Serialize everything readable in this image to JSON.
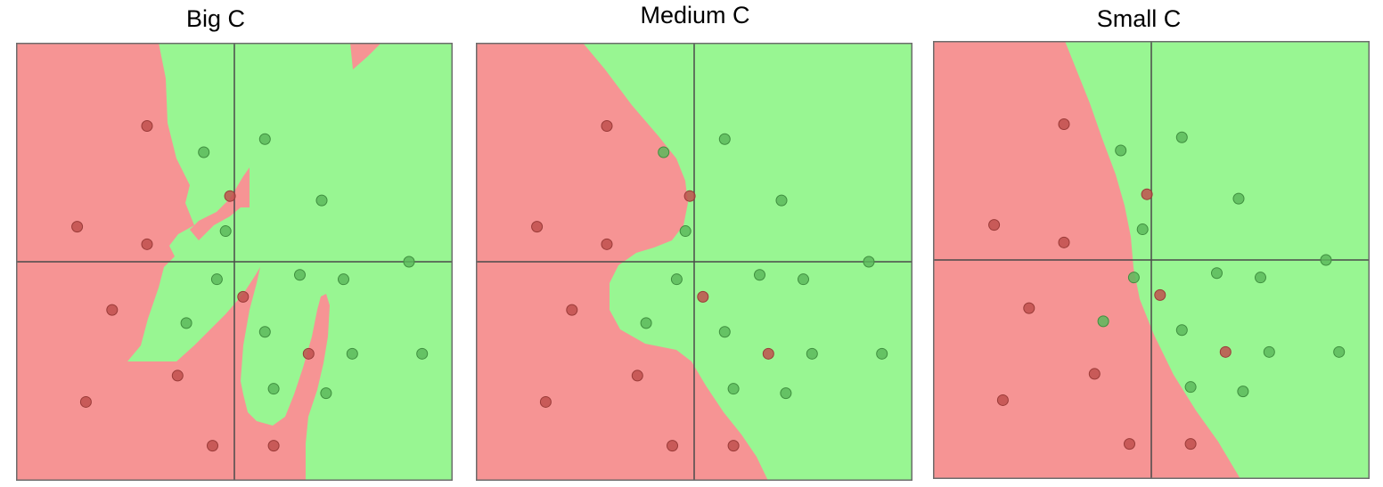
{
  "colors": {
    "red_region": "#f69494",
    "green_region": "#98f692",
    "red_point": "#c0504d",
    "green_point": "#5cb85c",
    "axis": "#4a4a4a"
  },
  "chart_data": [
    {
      "type": "scatter",
      "title": "Big C",
      "xlim": [
        -5,
        5
      ],
      "ylim": [
        -5,
        5
      ],
      "legend": "none",
      "points": [
        {
          "x": -2.0,
          "y": 3.1,
          "class": "red"
        },
        {
          "x": -3.6,
          "y": 0.8,
          "class": "red"
        },
        {
          "x": -2.0,
          "y": 0.4,
          "class": "red"
        },
        {
          "x": -0.1,
          "y": 1.5,
          "class": "red"
        },
        {
          "x": -2.8,
          "y": -1.1,
          "class": "red"
        },
        {
          "x": 0.2,
          "y": -0.8,
          "class": "red"
        },
        {
          "x": -1.3,
          "y": -2.6,
          "class": "red"
        },
        {
          "x": -3.4,
          "y": -3.2,
          "class": "red"
        },
        {
          "x": 1.7,
          "y": -2.1,
          "class": "red"
        },
        {
          "x": -0.5,
          "y": -4.2,
          "class": "red"
        },
        {
          "x": 0.9,
          "y": -4.2,
          "class": "red"
        },
        {
          "x": -0.7,
          "y": 2.5,
          "class": "green"
        },
        {
          "x": 0.7,
          "y": 2.8,
          "class": "green"
        },
        {
          "x": 2.0,
          "y": 1.4,
          "class": "green"
        },
        {
          "x": -0.2,
          "y": 0.7,
          "class": "green"
        },
        {
          "x": 4.0,
          "y": 0.0,
          "class": "green"
        },
        {
          "x": -0.4,
          "y": -0.4,
          "class": "green"
        },
        {
          "x": 1.5,
          "y": -0.3,
          "class": "green"
        },
        {
          "x": 2.5,
          "y": -0.4,
          "class": "green"
        },
        {
          "x": -1.1,
          "y": -1.4,
          "class": "green"
        },
        {
          "x": 0.7,
          "y": -1.6,
          "class": "green"
        },
        {
          "x": 2.7,
          "y": -2.1,
          "class": "green"
        },
        {
          "x": 4.3,
          "y": -2.1,
          "class": "green"
        },
        {
          "x": 0.9,
          "y": -2.9,
          "class": "green"
        },
        {
          "x": 2.1,
          "y": -3.0,
          "class": "green"
        }
      ]
    },
    {
      "type": "scatter",
      "title": "Medium C",
      "xlim": [
        -5,
        5
      ],
      "ylim": [
        -5,
        5
      ],
      "legend": "none",
      "points": [
        {
          "x": -2.0,
          "y": 3.1,
          "class": "red"
        },
        {
          "x": -3.6,
          "y": 0.8,
          "class": "red"
        },
        {
          "x": -2.0,
          "y": 0.4,
          "class": "red"
        },
        {
          "x": -0.1,
          "y": 1.5,
          "class": "red"
        },
        {
          "x": -2.8,
          "y": -1.1,
          "class": "red"
        },
        {
          "x": 0.2,
          "y": -0.8,
          "class": "red"
        },
        {
          "x": -1.3,
          "y": -2.6,
          "class": "red"
        },
        {
          "x": -3.4,
          "y": -3.2,
          "class": "red"
        },
        {
          "x": 1.7,
          "y": -2.1,
          "class": "red"
        },
        {
          "x": -0.5,
          "y": -4.2,
          "class": "red"
        },
        {
          "x": 0.9,
          "y": -4.2,
          "class": "red"
        },
        {
          "x": -0.7,
          "y": 2.5,
          "class": "green"
        },
        {
          "x": 0.7,
          "y": 2.8,
          "class": "green"
        },
        {
          "x": 2.0,
          "y": 1.4,
          "class": "green"
        },
        {
          "x": -0.2,
          "y": 0.7,
          "class": "green"
        },
        {
          "x": 4.0,
          "y": 0.0,
          "class": "green"
        },
        {
          "x": -0.4,
          "y": -0.4,
          "class": "green"
        },
        {
          "x": 1.5,
          "y": -0.3,
          "class": "green"
        },
        {
          "x": 2.5,
          "y": -0.4,
          "class": "green"
        },
        {
          "x": -1.1,
          "y": -1.4,
          "class": "green"
        },
        {
          "x": 0.7,
          "y": -1.6,
          "class": "green"
        },
        {
          "x": 2.7,
          "y": -2.1,
          "class": "green"
        },
        {
          "x": 4.3,
          "y": -2.1,
          "class": "green"
        },
        {
          "x": 0.9,
          "y": -2.9,
          "class": "green"
        },
        {
          "x": 2.1,
          "y": -3.0,
          "class": "green"
        }
      ]
    },
    {
      "type": "scatter",
      "title": "Small C",
      "xlim": [
        -5,
        5
      ],
      "ylim": [
        -5,
        5
      ],
      "legend": "none",
      "points": [
        {
          "x": -2.0,
          "y": 3.1,
          "class": "red"
        },
        {
          "x": -3.6,
          "y": 0.8,
          "class": "red"
        },
        {
          "x": -2.0,
          "y": 0.4,
          "class": "red"
        },
        {
          "x": -0.1,
          "y": 1.5,
          "class": "red"
        },
        {
          "x": -2.8,
          "y": -1.1,
          "class": "red"
        },
        {
          "x": 0.2,
          "y": -0.8,
          "class": "red"
        },
        {
          "x": -1.3,
          "y": -2.6,
          "class": "red"
        },
        {
          "x": -3.4,
          "y": -3.2,
          "class": "red"
        },
        {
          "x": 1.7,
          "y": -2.1,
          "class": "red"
        },
        {
          "x": -0.5,
          "y": -4.2,
          "class": "red"
        },
        {
          "x": 0.9,
          "y": -4.2,
          "class": "red"
        },
        {
          "x": -0.7,
          "y": 2.5,
          "class": "green"
        },
        {
          "x": 0.7,
          "y": 2.8,
          "class": "green"
        },
        {
          "x": 2.0,
          "y": 1.4,
          "class": "green"
        },
        {
          "x": -0.2,
          "y": 0.7,
          "class": "green"
        },
        {
          "x": 4.0,
          "y": 0.0,
          "class": "green"
        },
        {
          "x": -0.4,
          "y": -0.4,
          "class": "green"
        },
        {
          "x": 1.5,
          "y": -0.3,
          "class": "green"
        },
        {
          "x": 2.5,
          "y": -0.4,
          "class": "green"
        },
        {
          "x": -1.1,
          "y": -1.4,
          "class": "green"
        },
        {
          "x": 0.7,
          "y": -1.6,
          "class": "green"
        },
        {
          "x": 2.7,
          "y": -2.1,
          "class": "green"
        },
        {
          "x": 4.3,
          "y": -2.1,
          "class": "green"
        },
        {
          "x": 0.9,
          "y": -2.9,
          "class": "green"
        },
        {
          "x": 2.1,
          "y": -3.0,
          "class": "green"
        }
      ]
    }
  ]
}
